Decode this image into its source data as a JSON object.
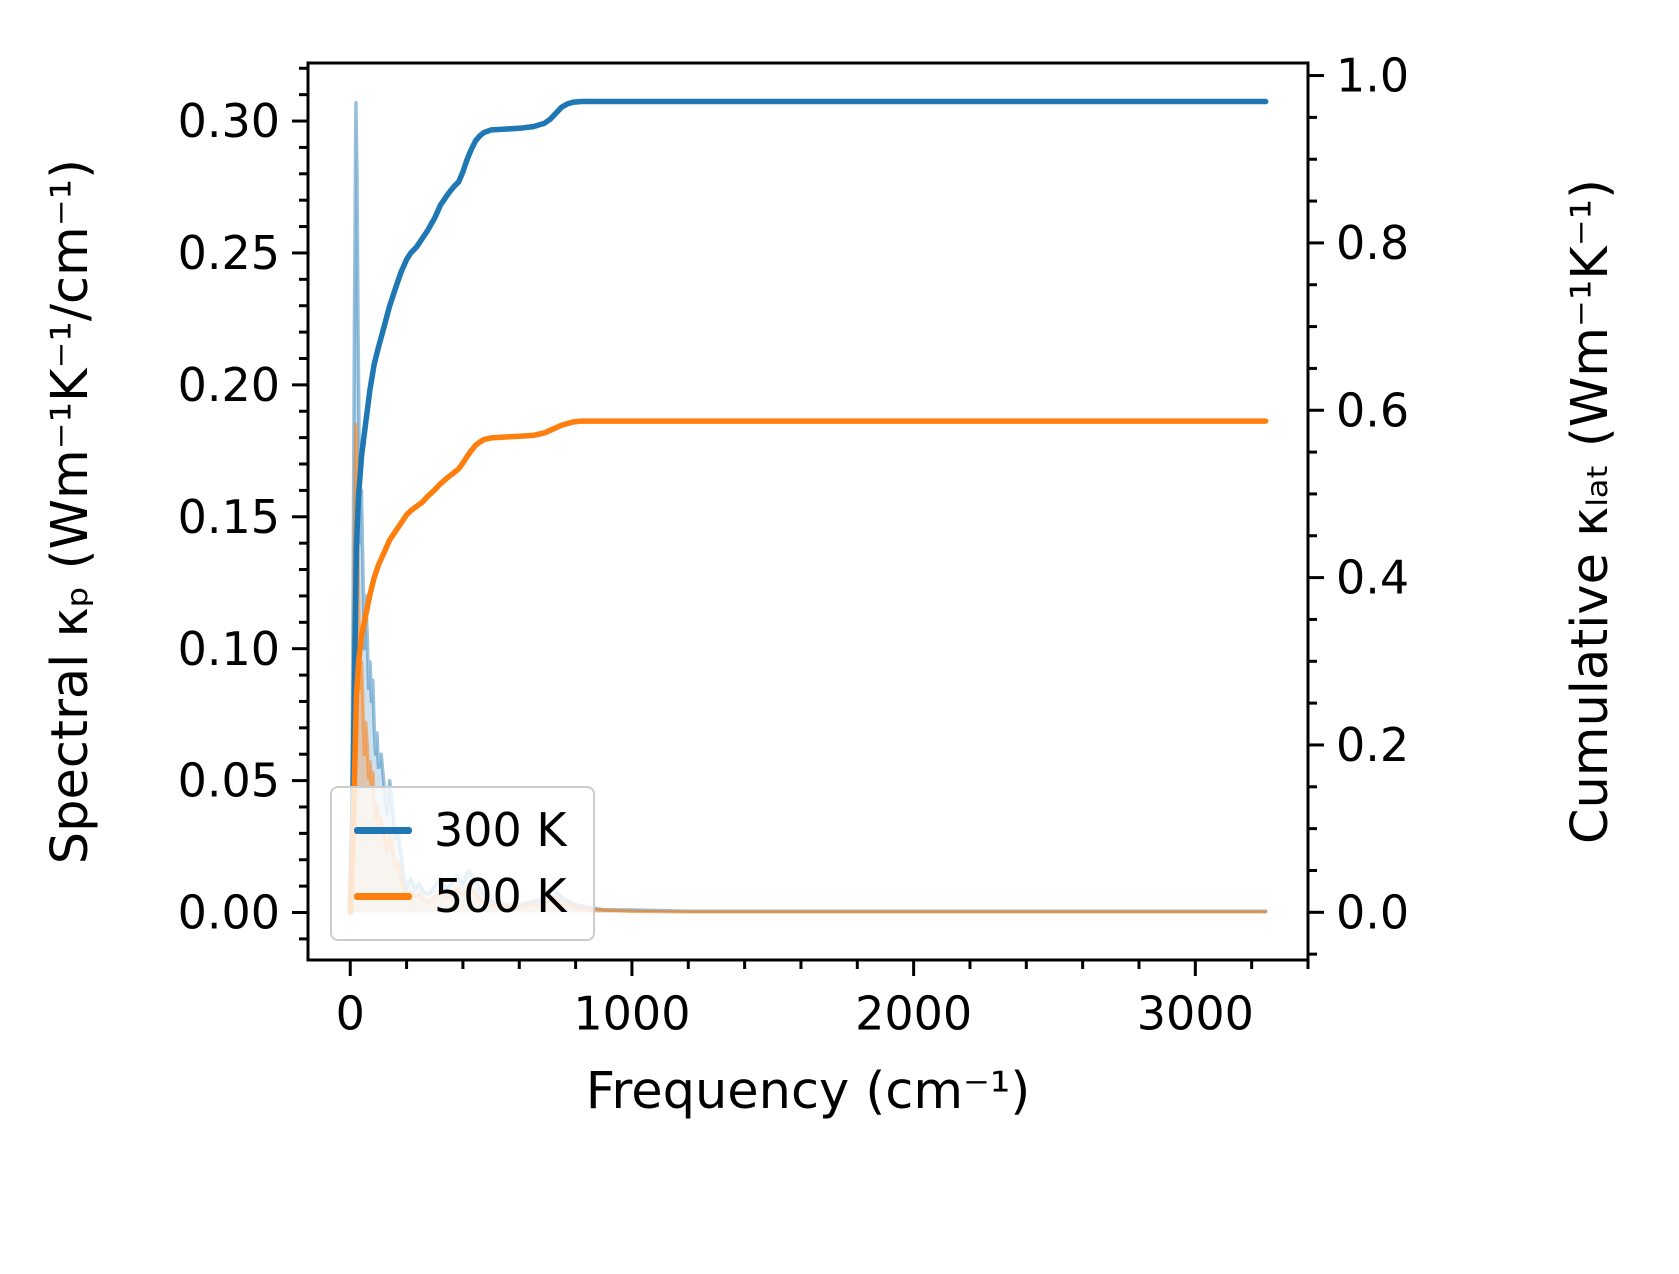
{
  "figure": {
    "background": "#ffffff"
  },
  "chart_data": {
    "type": "line",
    "title": "",
    "xlabel": "Frequency (cm⁻¹)",
    "ylabel_left": "Spectral κₚ (Wm⁻¹K⁻¹/cm⁻¹)",
    "ylabel_right": "Cumulative κₗₐₜ (Wm⁻¹K⁻¹)",
    "xlim": [
      -150,
      3400
    ],
    "ylim_left": [
      -0.018,
      0.322
    ],
    "ylim_right": [
      -0.057,
      1.015
    ],
    "x_ticks": [
      0,
      1000,
      2000,
      3000
    ],
    "x_tick_labels": [
      "0",
      "1000",
      "2000",
      "3000"
    ],
    "x_minor_step": 200,
    "y_left_ticks": [
      0.0,
      0.05,
      0.1,
      0.15,
      0.2,
      0.25,
      0.3
    ],
    "y_left_tick_labels": [
      "0.00",
      "0.05",
      "0.10",
      "0.15",
      "0.20",
      "0.25",
      "0.30"
    ],
    "y_left_minor_step": 0.01,
    "y_right_ticks": [
      0.0,
      0.2,
      0.4,
      0.6,
      0.8,
      1.0
    ],
    "y_right_tick_labels": [
      "0.0",
      "0.2",
      "0.4",
      "0.6",
      "0.8",
      "1.0"
    ],
    "y_right_minor_step": 0.05,
    "grid": false,
    "legend": {
      "position": "lower left",
      "entries": [
        {
          "label": "300 K",
          "color": "#1f77b4"
        },
        {
          "label": "500 K",
          "color": "#ff7f0e"
        }
      ]
    },
    "series": [
      {
        "name": "spectral-300K",
        "axis": "left",
        "color": "#1f77b4",
        "linewidth": 3.5,
        "line_opacity": 0.45,
        "fill": true,
        "fill_opacity": 0.22,
        "points": [
          [
            0,
            0
          ],
          [
            5,
            0.03
          ],
          [
            10,
            0.12
          ],
          [
            15,
            0.23
          ],
          [
            20,
            0.307
          ],
          [
            24,
            0.28
          ],
          [
            28,
            0.22
          ],
          [
            32,
            0.17
          ],
          [
            36,
            0.14
          ],
          [
            40,
            0.16
          ],
          [
            45,
            0.13
          ],
          [
            50,
            0.1
          ],
          [
            55,
            0.12
          ],
          [
            60,
            0.105
          ],
          [
            65,
            0.085
          ],
          [
            70,
            0.095
          ],
          [
            75,
            0.08
          ],
          [
            80,
            0.088
          ],
          [
            85,
            0.07
          ],
          [
            90,
            0.06
          ],
          [
            95,
            0.068
          ],
          [
            100,
            0.055
          ],
          [
            110,
            0.06
          ],
          [
            120,
            0.048
          ],
          [
            130,
            0.038
          ],
          [
            140,
            0.05
          ],
          [
            150,
            0.04
          ],
          [
            160,
            0.028
          ],
          [
            170,
            0.032
          ],
          [
            180,
            0.022
          ],
          [
            190,
            0.014
          ],
          [
            200,
            0.009
          ],
          [
            215,
            0.013
          ],
          [
            230,
            0.009
          ],
          [
            245,
            0.011
          ],
          [
            260,
            0.008
          ],
          [
            280,
            0.007
          ],
          [
            300,
            0.01
          ],
          [
            320,
            0.013
          ],
          [
            340,
            0.009
          ],
          [
            360,
            0.011
          ],
          [
            380,
            0.014
          ],
          [
            400,
            0.011
          ],
          [
            420,
            0.016
          ],
          [
            440,
            0.013
          ],
          [
            455,
            0.01
          ],
          [
            470,
            0.007
          ],
          [
            490,
            0.005
          ],
          [
            520,
            0.004
          ],
          [
            560,
            0.003
          ],
          [
            600,
            0.003
          ],
          [
            640,
            0.004
          ],
          [
            680,
            0.005
          ],
          [
            700,
            0.007
          ],
          [
            720,
            0.009
          ],
          [
            740,
            0.007
          ],
          [
            760,
            0.005
          ],
          [
            780,
            0.004
          ],
          [
            800,
            0.003
          ],
          [
            850,
            0.002
          ],
          [
            900,
            0.001
          ],
          [
            1000,
            0.001
          ],
          [
            1200,
            0.0005
          ],
          [
            1600,
            0.0005
          ],
          [
            2000,
            0.0005
          ],
          [
            2500,
            0.0005
          ],
          [
            3000,
            0.0005
          ],
          [
            3250,
            0.0005
          ]
        ]
      },
      {
        "name": "spectral-500K",
        "axis": "left",
        "color": "#ff7f0e",
        "linewidth": 3.5,
        "line_opacity": 0.55,
        "fill": true,
        "fill_opacity": 0.28,
        "points": [
          [
            0,
            0
          ],
          [
            5,
            0.02
          ],
          [
            10,
            0.07
          ],
          [
            15,
            0.14
          ],
          [
            20,
            0.185
          ],
          [
            24,
            0.17
          ],
          [
            28,
            0.13
          ],
          [
            32,
            0.1
          ],
          [
            36,
            0.085
          ],
          [
            40,
            0.095
          ],
          [
            45,
            0.078
          ],
          [
            50,
            0.06
          ],
          [
            55,
            0.072
          ],
          [
            60,
            0.063
          ],
          [
            65,
            0.051
          ],
          [
            70,
            0.057
          ],
          [
            75,
            0.048
          ],
          [
            80,
            0.053
          ],
          [
            85,
            0.042
          ],
          [
            90,
            0.036
          ],
          [
            95,
            0.041
          ],
          [
            100,
            0.033
          ],
          [
            110,
            0.036
          ],
          [
            120,
            0.029
          ],
          [
            130,
            0.023
          ],
          [
            140,
            0.03
          ],
          [
            150,
            0.024
          ],
          [
            160,
            0.017
          ],
          [
            170,
            0.019
          ],
          [
            180,
            0.013
          ],
          [
            190,
            0.009
          ],
          [
            200,
            0.006
          ],
          [
            215,
            0.008
          ],
          [
            230,
            0.006
          ],
          [
            245,
            0.007
          ],
          [
            260,
            0.005
          ],
          [
            280,
            0.004
          ],
          [
            300,
            0.006
          ],
          [
            320,
            0.008
          ],
          [
            340,
            0.006
          ],
          [
            360,
            0.007
          ],
          [
            380,
            0.009
          ],
          [
            400,
            0.007
          ],
          [
            420,
            0.01
          ],
          [
            440,
            0.008
          ],
          [
            455,
            0.006
          ],
          [
            470,
            0.004
          ],
          [
            490,
            0.003
          ],
          [
            520,
            0.003
          ],
          [
            560,
            0.002
          ],
          [
            600,
            0.002
          ],
          [
            640,
            0.003
          ],
          [
            680,
            0.003
          ],
          [
            700,
            0.004
          ],
          [
            720,
            0.006
          ],
          [
            740,
            0.005
          ],
          [
            760,
            0.003
          ],
          [
            780,
            0.003
          ],
          [
            800,
            0.002
          ],
          [
            850,
            0.001
          ],
          [
            900,
            0.001
          ],
          [
            1000,
            0.0005
          ],
          [
            1200,
            0.0003
          ],
          [
            1600,
            0.0003
          ],
          [
            2000,
            0.0003
          ],
          [
            2500,
            0.0003
          ],
          [
            3000,
            0.0003
          ],
          [
            3250,
            0.0003
          ]
        ]
      },
      {
        "name": "cumulative-300K",
        "axis": "right",
        "color": "#1f77b4",
        "linewidth": 5.5,
        "line_opacity": 1.0,
        "fill": false,
        "points": [
          [
            0,
            0
          ],
          [
            8,
            0.1
          ],
          [
            15,
            0.28
          ],
          [
            22,
            0.44
          ],
          [
            30,
            0.5
          ],
          [
            40,
            0.545
          ],
          [
            55,
            0.585
          ],
          [
            70,
            0.625
          ],
          [
            85,
            0.655
          ],
          [
            100,
            0.675
          ],
          [
            120,
            0.7
          ],
          [
            140,
            0.725
          ],
          [
            160,
            0.745
          ],
          [
            180,
            0.765
          ],
          [
            200,
            0.78
          ],
          [
            215,
            0.788
          ],
          [
            235,
            0.795
          ],
          [
            255,
            0.805
          ],
          [
            275,
            0.815
          ],
          [
            300,
            0.83
          ],
          [
            320,
            0.845
          ],
          [
            340,
            0.855
          ],
          [
            355,
            0.862
          ],
          [
            370,
            0.868
          ],
          [
            385,
            0.873
          ],
          [
            400,
            0.885
          ],
          [
            415,
            0.9
          ],
          [
            430,
            0.912
          ],
          [
            445,
            0.922
          ],
          [
            460,
            0.928
          ],
          [
            475,
            0.932
          ],
          [
            500,
            0.935
          ],
          [
            550,
            0.936
          ],
          [
            600,
            0.937
          ],
          [
            650,
            0.939
          ],
          [
            690,
            0.943
          ],
          [
            710,
            0.948
          ],
          [
            730,
            0.955
          ],
          [
            750,
            0.962
          ],
          [
            770,
            0.966
          ],
          [
            790,
            0.968
          ],
          [
            820,
            0.969
          ],
          [
            900,
            0.969
          ],
          [
            1000,
            0.969
          ],
          [
            1500,
            0.969
          ],
          [
            2000,
            0.969
          ],
          [
            2500,
            0.969
          ],
          [
            3000,
            0.969
          ],
          [
            3250,
            0.969
          ]
        ]
      },
      {
        "name": "cumulative-500K",
        "axis": "right",
        "color": "#ff7f0e",
        "linewidth": 5.5,
        "line_opacity": 1.0,
        "fill": false,
        "points": [
          [
            0,
            0
          ],
          [
            8,
            0.06
          ],
          [
            15,
            0.16
          ],
          [
            22,
            0.26
          ],
          [
            30,
            0.3
          ],
          [
            40,
            0.33
          ],
          [
            55,
            0.355
          ],
          [
            70,
            0.38
          ],
          [
            85,
            0.4
          ],
          [
            100,
            0.415
          ],
          [
            120,
            0.43
          ],
          [
            140,
            0.445
          ],
          [
            160,
            0.455
          ],
          [
            180,
            0.465
          ],
          [
            200,
            0.475
          ],
          [
            215,
            0.48
          ],
          [
            235,
            0.485
          ],
          [
            255,
            0.49
          ],
          [
            275,
            0.497
          ],
          [
            300,
            0.505
          ],
          [
            320,
            0.512
          ],
          [
            340,
            0.518
          ],
          [
            355,
            0.522
          ],
          [
            370,
            0.526
          ],
          [
            385,
            0.53
          ],
          [
            400,
            0.537
          ],
          [
            415,
            0.545
          ],
          [
            430,
            0.552
          ],
          [
            445,
            0.558
          ],
          [
            460,
            0.562
          ],
          [
            475,
            0.565
          ],
          [
            500,
            0.567
          ],
          [
            550,
            0.568
          ],
          [
            600,
            0.569
          ],
          [
            650,
            0.57
          ],
          [
            690,
            0.573
          ],
          [
            710,
            0.576
          ],
          [
            730,
            0.579
          ],
          [
            750,
            0.582
          ],
          [
            770,
            0.584
          ],
          [
            790,
            0.586
          ],
          [
            820,
            0.587
          ],
          [
            900,
            0.587
          ],
          [
            1000,
            0.587
          ],
          [
            1500,
            0.587
          ],
          [
            2000,
            0.587
          ],
          [
            2500,
            0.587
          ],
          [
            3000,
            0.587
          ],
          [
            3250,
            0.587
          ]
        ]
      }
    ]
  }
}
